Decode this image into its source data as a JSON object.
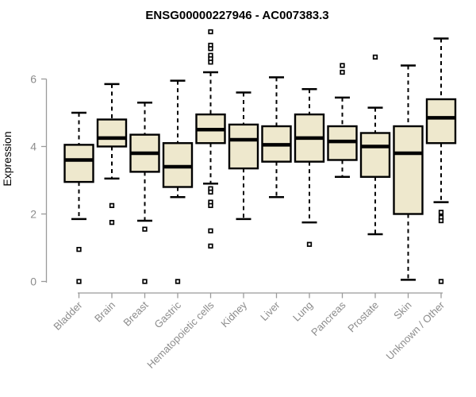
{
  "chart_data": {
    "type": "boxplot",
    "title": "ENSG00000227946 - AC007383.3",
    "ylabel": "Expression",
    "xlabel": "",
    "ylim": [
      0,
      7.5
    ],
    "yticks": [
      0,
      2,
      4,
      6
    ],
    "grid": false,
    "legend": "none",
    "colors": {
      "box_fill": "#EEE8CD",
      "box_border": "#000000",
      "median": "#000000",
      "whisker": "#000000",
      "axis_line": "#9B9B9B",
      "axis_text": "#8C8C8C",
      "title_text": "#000000",
      "background": "#FFFFFF"
    },
    "categories": [
      "Bladder",
      "Brain",
      "Breast",
      "Gastric",
      "Hematopoietic cells",
      "Kidney",
      "Liver",
      "Lung",
      "Pancreas",
      "Prostate",
      "Skin",
      "Unknown / Other"
    ],
    "series": [
      {
        "category": "Bladder",
        "whisker_low": 1.85,
        "q1": 2.95,
        "median": 3.6,
        "q3": 4.05,
        "whisker_high": 5.0,
        "outliers": [
          0.95,
          0.0
        ]
      },
      {
        "category": "Brain",
        "whisker_low": 3.05,
        "q1": 4.0,
        "median": 4.25,
        "q3": 4.8,
        "whisker_high": 5.85,
        "outliers": [
          2.25,
          1.75
        ]
      },
      {
        "category": "Breast",
        "whisker_low": 1.8,
        "q1": 3.25,
        "median": 3.8,
        "q3": 4.35,
        "whisker_high": 5.3,
        "outliers": [
          1.55,
          0.0
        ]
      },
      {
        "category": "Gastric",
        "whisker_low": 2.5,
        "q1": 2.8,
        "median": 3.4,
        "q3": 4.1,
        "whisker_high": 5.95,
        "outliers": [
          0.0
        ]
      },
      {
        "category": "Hematopoietic cells",
        "whisker_low": 2.9,
        "q1": 4.1,
        "median": 4.5,
        "q3": 4.95,
        "whisker_high": 6.2,
        "outliers": [
          7.4,
          7.0,
          6.9,
          6.7,
          6.6,
          6.5,
          2.75,
          2.65,
          2.35,
          2.25,
          1.5,
          1.05
        ]
      },
      {
        "category": "Kidney",
        "whisker_low": 1.85,
        "q1": 3.35,
        "median": 4.2,
        "q3": 4.65,
        "whisker_high": 5.6,
        "outliers": []
      },
      {
        "category": "Liver",
        "whisker_low": 2.5,
        "q1": 3.55,
        "median": 4.05,
        "q3": 4.6,
        "whisker_high": 6.05,
        "outliers": []
      },
      {
        "category": "Lung",
        "whisker_low": 1.75,
        "q1": 3.55,
        "median": 4.25,
        "q3": 4.95,
        "whisker_high": 5.7,
        "outliers": [
          1.1
        ]
      },
      {
        "category": "Pancreas",
        "whisker_low": 3.1,
        "q1": 3.6,
        "median": 4.15,
        "q3": 4.6,
        "whisker_high": 5.45,
        "outliers": [
          6.4,
          6.2
        ]
      },
      {
        "category": "Prostate",
        "whisker_low": 1.4,
        "q1": 3.1,
        "median": 4.0,
        "q3": 4.4,
        "whisker_high": 5.15,
        "outliers": [
          6.65
        ]
      },
      {
        "category": "Skin",
        "whisker_low": 0.05,
        "q1": 2.0,
        "median": 3.8,
        "q3": 4.6,
        "whisker_high": 6.4,
        "outliers": []
      },
      {
        "category": "Unknown / Other",
        "whisker_low": 2.35,
        "q1": 4.1,
        "median": 4.85,
        "q3": 5.4,
        "whisker_high": 7.2,
        "outliers": [
          2.05,
          1.9,
          1.8,
          0.0
        ]
      }
    ]
  }
}
